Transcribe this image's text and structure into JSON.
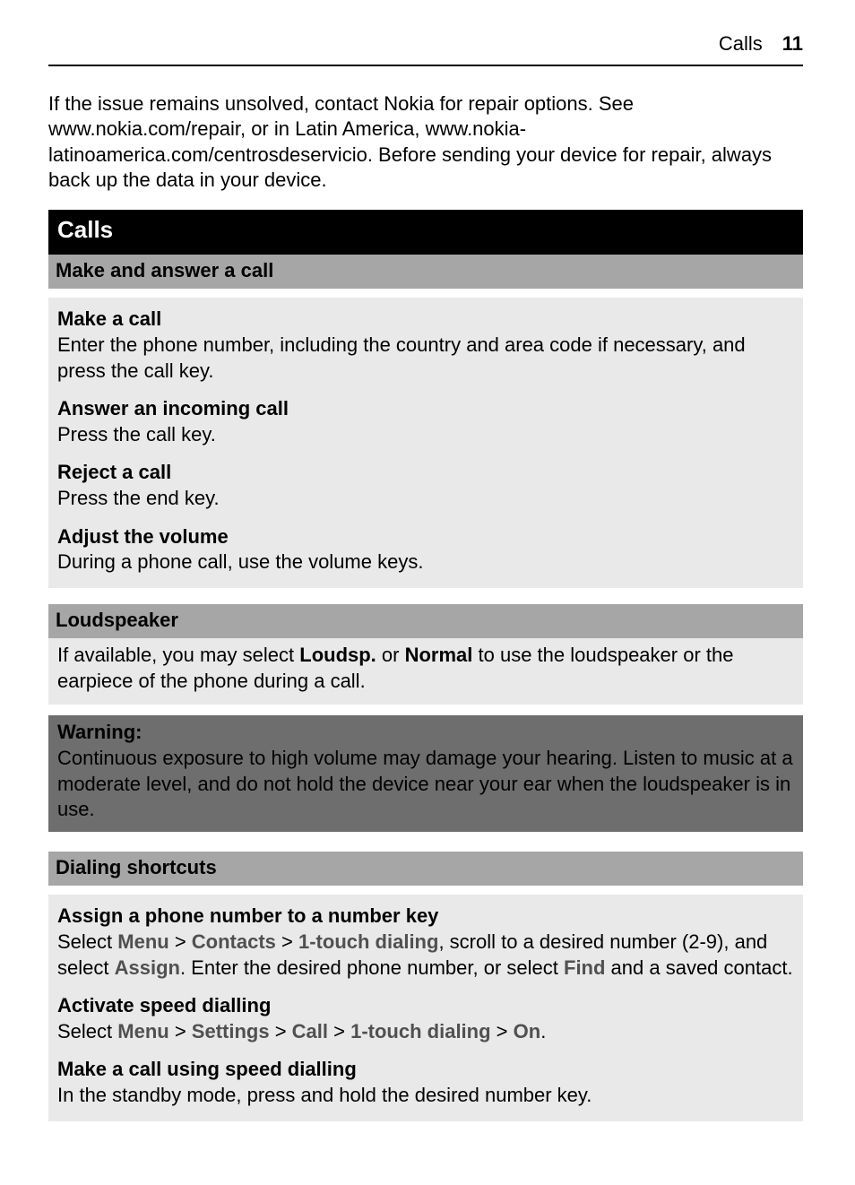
{
  "header": {
    "section": "Calls",
    "page": "11"
  },
  "intro": "If the issue remains unsolved, contact Nokia for repair options. See www.nokia.com/repair, or in Latin America, www.nokia-latinoamerica.com/centrosdeservicio. Before sending your device for repair, always back up the data in your device.",
  "calls_title": "Calls",
  "make_answer": {
    "bar": "Make and answer a call",
    "subs": [
      {
        "title": "Make a call",
        "text": "Enter the phone number, including the country and area code if necessary, and press the call key."
      },
      {
        "title": "Answer an incoming call",
        "text": "Press the call key."
      },
      {
        "title": "Reject a call",
        "text": "Press the end key."
      },
      {
        "title": "Adjust the volume",
        "text": "During a phone call, use the volume keys."
      }
    ]
  },
  "loudspeaker": {
    "bar": "Loudspeaker",
    "pre": "If available, you may select ",
    "b1": "Loudsp.",
    "mid1": " or ",
    "b2": "Normal",
    "post": " to use the loudspeaker or the earpiece of the phone during a call."
  },
  "warning": {
    "title": "Warning:",
    "text": "Continuous exposure to high volume may damage your hearing. Listen to music at a moderate level, and do not hold the device near your ear when the loudspeaker is in use."
  },
  "dialing": {
    "bar": "Dialing shortcuts",
    "assign": {
      "title": "Assign a phone number to a number key",
      "t0": "Select ",
      "m1": "Menu",
      "s1": " > ",
      "m2": "Contacts",
      "s2": " > ",
      "m3": "1-touch dialing",
      "t1": ", scroll to a desired number (2-9), and select ",
      "m4": "Assign",
      "t2": ". Enter the desired phone number, or select ",
      "m5": "Find",
      "t3": " and a saved contact."
    },
    "activate": {
      "title": "Activate speed dialling",
      "t0": "Select ",
      "m1": "Menu",
      "s1": " > ",
      "m2": "Settings",
      "s2": " > ",
      "m3": "Call",
      "s3": " > ",
      "m4": "1-touch dialing",
      "s4": " > ",
      "m5": "On",
      "t1": "."
    },
    "makecall": {
      "title": "Make a call using speed dialling",
      "text": "In the standby mode, press and hold the desired number key."
    }
  }
}
